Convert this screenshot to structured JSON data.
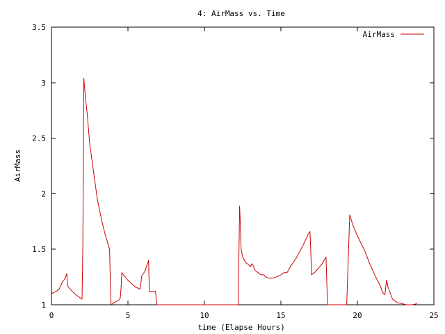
{
  "chart_data": {
    "type": "line",
    "title": "4: AirMass vs. Time",
    "xlabel": "time (Elapse Hours)",
    "ylabel": "AirMass",
    "xlim": [
      0,
      25
    ],
    "ylim": [
      1,
      3.5
    ],
    "x_ticks": [
      0,
      5,
      10,
      15,
      20,
      25
    ],
    "y_ticks": [
      1,
      1.5,
      2,
      2.5,
      3,
      3.5
    ],
    "x_tick_labels": [
      "0",
      "5",
      "10",
      "15",
      "20",
      "25"
    ],
    "y_tick_labels": [
      "1",
      "1.5",
      "2",
      "2.5",
      "3",
      "3.5"
    ],
    "grid": false,
    "legend_position": "top-right",
    "series": [
      {
        "name": "AirMass",
        "color": "#cc0000",
        "x": [
          0.0,
          0.3,
          0.5,
          0.7,
          0.9,
          1.0,
          1.05,
          1.3,
          1.6,
          1.9,
          2.0,
          2.05,
          2.12,
          2.2,
          2.35,
          2.5,
          2.7,
          3.0,
          3.3,
          3.5,
          3.8,
          3.85,
          3.9,
          4.1,
          4.4,
          4.5,
          4.55,
          4.6,
          4.7,
          5.0,
          5.5,
          5.8,
          5.85,
          5.9,
          6.1,
          6.3,
          6.35,
          6.4,
          6.8,
          6.85,
          6.9,
          6.95,
          12.2,
          12.25,
          12.3,
          12.35,
          12.4,
          12.5,
          12.7,
          12.9,
          13.0,
          13.1,
          13.2,
          13.3,
          13.5,
          13.7,
          13.9,
          14.0,
          14.2,
          14.5,
          14.7,
          15.0,
          15.2,
          15.4,
          15.5,
          15.6,
          15.8,
          16.0,
          16.2,
          16.5,
          16.8,
          16.9,
          16.95,
          17.0,
          17.2,
          17.4,
          17.7,
          17.9,
          17.95,
          18.0,
          18.05,
          19.3,
          19.35,
          19.5,
          19.7,
          20.0,
          20.5,
          20.8,
          21.2,
          21.5,
          21.6,
          21.7,
          21.8,
          21.9,
          21.95,
          22.0,
          22.3,
          22.6,
          22.9,
          23.2,
          23.3,
          23.6,
          23.9
        ],
        "y": [
          1.1,
          1.12,
          1.14,
          1.2,
          1.24,
          1.28,
          1.17,
          1.13,
          1.09,
          1.06,
          1.05,
          1.5,
          3.04,
          2.9,
          2.7,
          2.45,
          2.25,
          1.95,
          1.75,
          1.64,
          1.5,
          1.2,
          1.0,
          1.02,
          1.04,
          1.06,
          1.15,
          1.29,
          1.27,
          1.22,
          1.16,
          1.14,
          1.2,
          1.26,
          1.3,
          1.38,
          1.4,
          1.12,
          1.12,
          1.05,
          1.0,
          1.0,
          1.0,
          1.4,
          1.89,
          1.72,
          1.5,
          1.43,
          1.38,
          1.36,
          1.34,
          1.37,
          1.35,
          1.31,
          1.29,
          1.27,
          1.27,
          1.25,
          1.24,
          1.24,
          1.25,
          1.27,
          1.29,
          1.29,
          1.31,
          1.34,
          1.38,
          1.42,
          1.47,
          1.55,
          1.64,
          1.66,
          1.5,
          1.27,
          1.29,
          1.32,
          1.37,
          1.42,
          1.43,
          1.2,
          1.0,
          1.0,
          1.2,
          1.81,
          1.72,
          1.62,
          1.48,
          1.37,
          1.25,
          1.17,
          1.13,
          1.1,
          1.09,
          1.22,
          1.2,
          1.16,
          1.05,
          1.02,
          1.01,
          1.0,
          1.0,
          1.0,
          1.01
        ]
      }
    ]
  }
}
